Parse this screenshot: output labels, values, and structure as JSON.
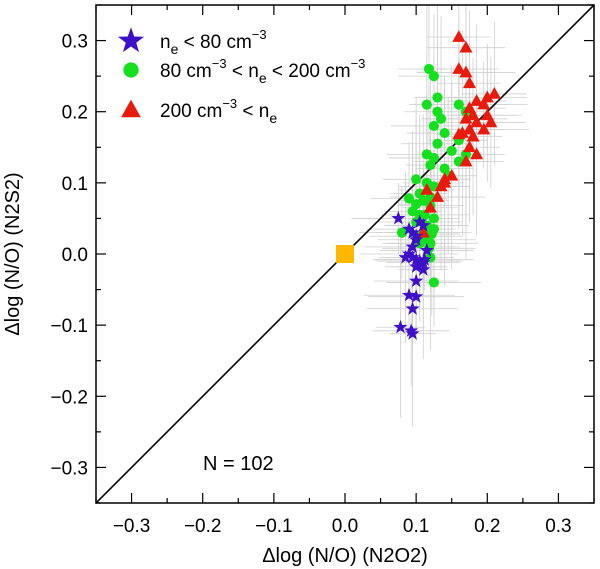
{
  "chart_data": {
    "type": "scatter",
    "xlabel": "Δlog (N/O) (N2O2)",
    "ylabel": "Δlog (N/O) (N2S2)",
    "xlim": [
      -0.35,
      0.35
    ],
    "ylim": [
      -0.35,
      0.35
    ],
    "xticks": [
      -0.3,
      -0.2,
      -0.1,
      0.0,
      0.1,
      0.2,
      0.3
    ],
    "yticks": [
      -0.3,
      -0.2,
      -0.1,
      0.0,
      0.1,
      0.2,
      0.3
    ],
    "xtick_labels": [
      "−0.3",
      "−0.2",
      "−0.1",
      "0.0",
      "0.1",
      "0.2",
      "0.3"
    ],
    "ytick_labels": [
      "−0.3",
      "−0.2",
      "−0.1",
      "0.0",
      "0.1",
      "0.2",
      "0.3"
    ],
    "grid": false,
    "legend_position": "top-left",
    "annotation": "N =  102",
    "reference_line": {
      "x": [
        -0.35,
        0.35
      ],
      "y": [
        -0.35,
        0.35
      ]
    },
    "reference_point": {
      "x": 0.0,
      "y": 0.0,
      "color": "#FFB700"
    },
    "series": [
      {
        "legend": {
          "pre": "n",
          "pre_sub": "e",
          "mid": " <  80 cm",
          "mid_sup": "−3",
          "post": "",
          "post_sub": "",
          "post_sup": ""
        },
        "marker": "star",
        "color": "#3D10C8",
        "points": [
          [
            0.075,
            0.05
          ],
          [
            0.09,
            0.035
          ],
          [
            0.095,
            0.03
          ],
          [
            0.1,
            0.025
          ],
          [
            0.105,
            0.045
          ],
          [
            0.11,
            0.04
          ],
          [
            0.1,
            0.02
          ],
          [
            0.095,
            0.01
          ],
          [
            0.09,
            0.0
          ],
          [
            0.095,
            -0.005
          ],
          [
            0.1,
            -0.008
          ],
          [
            0.105,
            -0.01
          ],
          [
            0.11,
            -0.012
          ],
          [
            0.1,
            -0.018
          ],
          [
            0.115,
            0.005
          ],
          [
            0.085,
            -0.005
          ],
          [
            0.11,
            -0.022
          ],
          [
            0.1,
            -0.038
          ],
          [
            0.09,
            -0.058
          ],
          [
            0.1,
            -0.06
          ],
          [
            0.095,
            -0.077
          ],
          [
            0.078,
            -0.103
          ],
          [
            0.093,
            -0.108
          ],
          [
            0.095,
            -0.112
          ],
          [
            0.112,
            -0.008
          ]
        ]
      },
      {
        "legend": {
          "pre": "80 cm",
          "pre_sub": "",
          "mid": " < n",
          "mid_sup": "−3",
          "post": " <  200 cm",
          "post_sub": "e",
          "post_sup": "−3"
        },
        "marker": "circle",
        "color": "#14E01E",
        "points": [
          [
            0.118,
            0.26
          ],
          [
            0.125,
            0.25
          ],
          [
            0.13,
            0.22
          ],
          [
            0.115,
            0.21
          ],
          [
            0.13,
            0.2
          ],
          [
            0.16,
            0.21
          ],
          [
            0.17,
            0.2
          ],
          [
            0.135,
            0.19
          ],
          [
            0.125,
            0.18
          ],
          [
            0.14,
            0.17
          ],
          [
            0.16,
            0.16
          ],
          [
            0.13,
            0.155
          ],
          [
            0.15,
            0.145
          ],
          [
            0.115,
            0.14
          ],
          [
            0.125,
            0.135
          ],
          [
            0.17,
            0.14
          ],
          [
            0.12,
            0.125
          ],
          [
            0.14,
            0.12
          ],
          [
            0.16,
            0.13
          ],
          [
            0.145,
            0.11
          ],
          [
            0.1,
            0.105
          ],
          [
            0.115,
            0.1
          ],
          [
            0.125,
            0.095
          ],
          [
            0.105,
            0.085
          ],
          [
            0.12,
            0.08
          ],
          [
            0.11,
            0.075
          ],
          [
            0.09,
            0.078
          ],
          [
            0.1,
            0.07
          ],
          [
            0.12,
            0.068
          ],
          [
            0.095,
            0.06
          ],
          [
            0.105,
            0.055
          ],
          [
            0.112,
            0.055
          ],
          [
            0.125,
            0.05
          ],
          [
            0.1,
            0.045
          ],
          [
            0.115,
            0.04
          ],
          [
            0.125,
            0.035
          ],
          [
            0.08,
            0.03
          ],
          [
            0.11,
            0.03
          ],
          [
            0.122,
            0.028
          ],
          [
            0.1,
            0.025
          ],
          [
            0.115,
            0.02
          ],
          [
            0.12,
            0.015
          ],
          [
            0.105,
            0.015
          ],
          [
            0.118,
            0.008
          ],
          [
            0.12,
            -0.005
          ],
          [
            0.125,
            -0.04
          ]
        ]
      },
      {
        "legend": {
          "pre": "200 cm",
          "pre_sub": "",
          "mid": " < n",
          "mid_sup": "−3",
          "post": "",
          "post_sub": "e",
          "post_sup": ""
        },
        "marker": "triangle",
        "color": "#E81A0C",
        "points": [
          [
            0.16,
            0.305
          ],
          [
            0.17,
            0.29
          ],
          [
            0.16,
            0.26
          ],
          [
            0.17,
            0.255
          ],
          [
            0.175,
            0.24
          ],
          [
            0.185,
            0.215
          ],
          [
            0.2,
            0.22
          ],
          [
            0.21,
            0.225
          ],
          [
            0.195,
            0.21
          ],
          [
            0.175,
            0.205
          ],
          [
            0.18,
            0.195
          ],
          [
            0.2,
            0.195
          ],
          [
            0.17,
            0.19
          ],
          [
            0.185,
            0.185
          ],
          [
            0.205,
            0.185
          ],
          [
            0.175,
            0.175
          ],
          [
            0.165,
            0.17
          ],
          [
            0.16,
            0.168
          ],
          [
            0.195,
            0.175
          ],
          [
            0.18,
            0.165
          ],
          [
            0.175,
            0.15
          ],
          [
            0.185,
            0.14
          ],
          [
            0.17,
            0.13
          ],
          [
            0.15,
            0.11
          ],
          [
            0.14,
            0.105
          ],
          [
            0.135,
            0.095
          ],
          [
            0.115,
            0.09
          ],
          [
            0.13,
            0.08
          ],
          [
            0.12,
            0.065
          ],
          [
            0.14,
            0.1
          ],
          [
            0.11,
            0.03
          ]
        ]
      }
    ]
  }
}
